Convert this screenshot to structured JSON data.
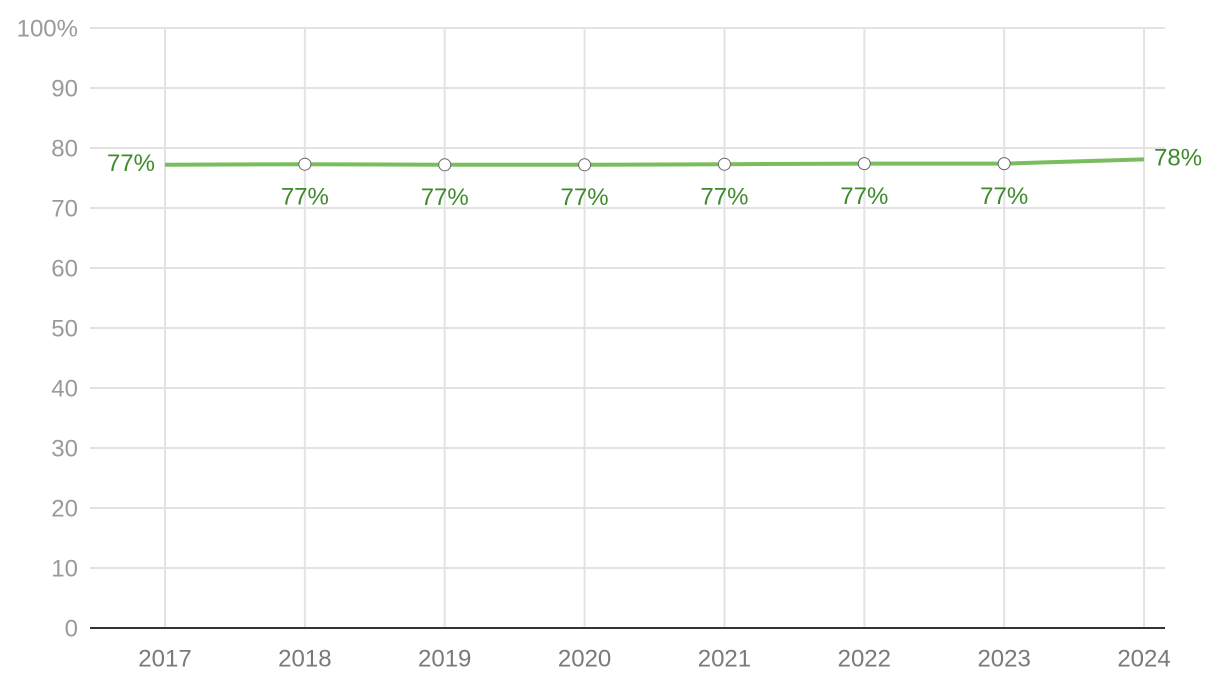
{
  "chart_data": {
    "type": "line",
    "categories": [
      "2017",
      "2018",
      "2019",
      "2020",
      "2021",
      "2022",
      "2023",
      "2024"
    ],
    "series": [
      {
        "color": "#7abd5e",
        "values": [
          77.2,
          77.3,
          77.2,
          77.2,
          77.3,
          77.4,
          77.4,
          78.1
        ],
        "value_labels": [
          "77%",
          "77%",
          "77%",
          "77%",
          "77%",
          "77%",
          "77%",
          "78%"
        ]
      }
    ],
    "ylim": [
      0,
      100
    ],
    "yticks": [
      0,
      10,
      20,
      30,
      40,
      50,
      60,
      70,
      80,
      90,
      {
        "value": 100,
        "label": "100%"
      }
    ],
    "grid": true
  }
}
